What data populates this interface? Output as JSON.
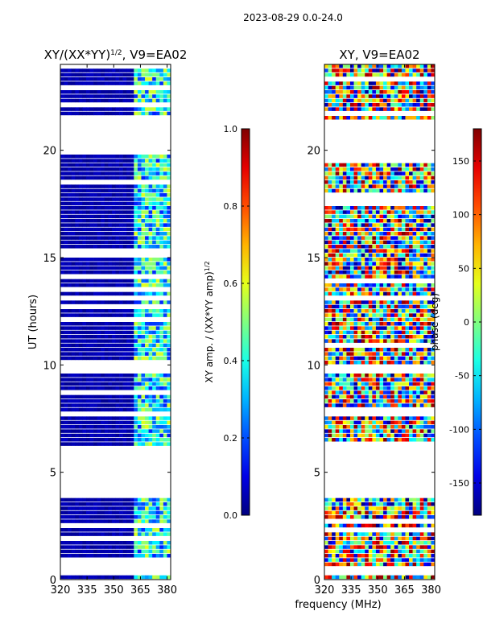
{
  "suptitle": "2023-08-29 0.0-24.0",
  "common_xlabel": "frequency (MHz)",
  "chart_data": [
    {
      "type": "heatmap",
      "title": "XY/(XX*YY)^1/2, V9=EA02",
      "title_main": "XY/(XX*YY)",
      "title_sup": "1/2",
      "title_rest": ", V9=EA02",
      "xlabel": "frequency (MHz)",
      "ylabel": "UT (hours)",
      "xlim": [
        320,
        382
      ],
      "ylim": [
        0,
        24
      ],
      "xticks": [
        320,
        335,
        350,
        365,
        380
      ],
      "yticks": [
        0,
        5,
        10,
        15,
        20
      ],
      "colorbar": {
        "label_main": "XY amp. / (XX*YY amp)",
        "label_sup": "1/2",
        "range": [
          0.0,
          1.0
        ],
        "ticks": [
          "0.0",
          "0.2",
          "0.4",
          "0.6",
          "0.8",
          "1.0"
        ],
        "tick_values": [
          0.0,
          0.2,
          0.4,
          0.6,
          0.8,
          1.0
        ],
        "colormap": "jet"
      },
      "data_gaps_hours": [
        [
          0.2,
          0.7
        ],
        [
          3.9,
          6.3
        ],
        [
          19.8,
          21.3
        ],
        [
          24.0,
          24.0
        ]
      ],
      "description_note": "low amplitude (~0) below 362 MHz, higher (~0.3-0.6) between 362 and 380 MHz"
    },
    {
      "type": "heatmap",
      "title": "XY, V9=EA02",
      "xlabel": "frequency (MHz)",
      "ylabel": "",
      "xlim": [
        320,
        382
      ],
      "ylim": [
        0,
        24
      ],
      "xticks": [
        320,
        335,
        350,
        365,
        380
      ],
      "yticks": [
        0,
        5,
        10,
        15,
        20
      ],
      "colorbar": {
        "label": "phase (deg)",
        "range": [
          -180,
          180
        ],
        "ticks": [
          "-150",
          "-100",
          "-50",
          "0",
          "50",
          "100",
          "150"
        ],
        "tick_values": [
          -150,
          -100,
          -50,
          0,
          50,
          100,
          150
        ],
        "colormap": "jet"
      },
      "data_gaps_hours": [
        [
          0.2,
          0.7
        ],
        [
          3.9,
          6.3
        ],
        [
          19.8,
          21.3
        ]
      ],
      "description_note": "phase values spread across full range -180 to 180 deg, noisy"
    }
  ]
}
